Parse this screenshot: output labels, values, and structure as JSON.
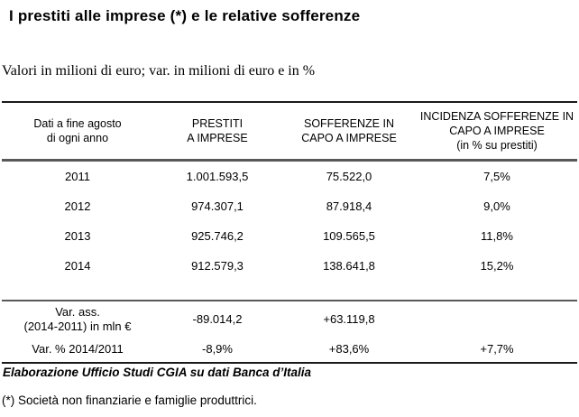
{
  "title": "I prestiti alle imprese (*) e le relative sofferenze",
  "subtitle": "Valori in milioni di euro; var. in milioni di euro e in %",
  "table": {
    "columns": [
      "Dati a fine agosto\ndi ogni anno",
      "PRESTITI\nA IMPRESE",
      "SOFFERENZE IN\nCAPO A IMPRESE",
      "INCIDENZA SOFFERENZE IN\nCAPO A IMPRESE\n(in % su prestiti)"
    ],
    "rows": [
      [
        "2011",
        "1.001.593,5",
        "75.522,0",
        "7,5%"
      ],
      [
        "2012",
        "974.307,1",
        "87.918,4",
        "9,0%"
      ],
      [
        "2013",
        "925.746,2",
        "109.565,5",
        "11,8%"
      ],
      [
        "2014",
        "912.579,3",
        "138.641,8",
        "15,2%"
      ]
    ],
    "summary_rows": [
      {
        "label": "Var. ass.\n(2014-2011) in mln €",
        "values": [
          "-89.014,2",
          "+63.119,8",
          ""
        ]
      },
      {
        "label": "Var. % 2014/2011",
        "values": [
          "-8,9%",
          "+83,6%",
          "+7,7%"
        ]
      }
    ]
  },
  "source": "Elaborazione Ufficio Studi CGIA su dati Banca d’Italia",
  "note": "(*) Società non finanziarie e famiglie produttrici.",
  "colors": {
    "text": "#000000",
    "rule_dark": "#1a1a1a",
    "rule_gray": "#595959",
    "background": "#ffffff"
  }
}
